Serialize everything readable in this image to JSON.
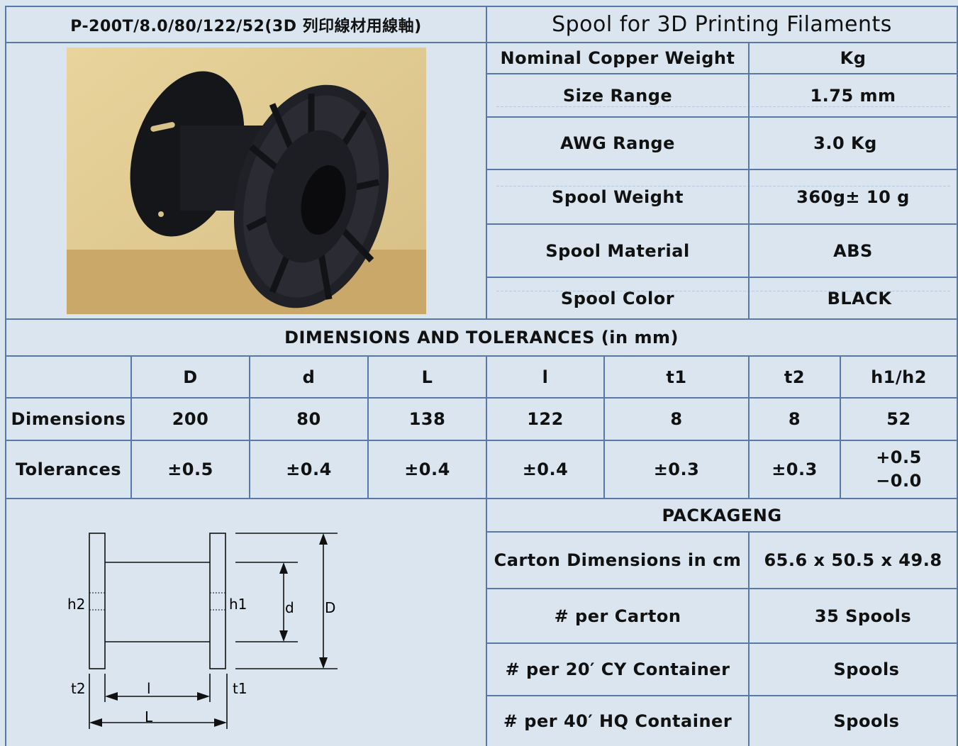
{
  "header": {
    "model": "P-200T/8.0/80/122/52(3D 列印線材用線軸)",
    "product": "Spool for 3D Printing Filaments"
  },
  "specs": [
    {
      "label": "Nominal Copper Weight",
      "value": "Kg"
    },
    {
      "label": "Size Range",
      "value": "1.75 mm"
    },
    {
      "label": "AWG Range",
      "value": "3.0 Kg"
    },
    {
      "label": "Spool Weight",
      "value": "360g± 10 g"
    },
    {
      "label": "Spool Material",
      "value": "ABS"
    },
    {
      "label": "Spool Color",
      "value": "BLACK"
    }
  ],
  "dimensions": {
    "title": "DIMENSIONS AND TOLERANCES (in mm)",
    "columns": [
      "D",
      "d",
      "L",
      "l",
      "t1",
      "t2",
      "h1/h2"
    ],
    "rows": [
      {
        "label": "Dimensions",
        "values": [
          "200",
          "80",
          "138",
          "122",
          "8",
          "8",
          "52"
        ]
      },
      {
        "label": "Tolerances",
        "values": [
          "±0.5",
          "±0.4",
          "±0.4",
          "±0.4",
          "±0.3",
          "±0.3"
        ],
        "last": [
          "+0.5",
          "−0.0"
        ]
      }
    ]
  },
  "diagram_labels": {
    "D": "D",
    "d": "d",
    "h1": "h1",
    "h2": "h2",
    "t1": "t1",
    "t2": "t2",
    "l": "l",
    "L": "L"
  },
  "packaging": {
    "title": "PACKAGENG",
    "rows": [
      {
        "label": "Carton Dimensions in cm",
        "value": "65.6 x 50.5 x 49.8"
      },
      {
        "label": "# per Carton",
        "value": "35 Spools"
      },
      {
        "label": "# per 20′ CY Container",
        "value": "Spools"
      },
      {
        "label": "# per 40′ HQ Container",
        "value": "Spools"
      }
    ]
  },
  "colors": {
    "background": "#dae5f0",
    "border": "#5878a8"
  }
}
